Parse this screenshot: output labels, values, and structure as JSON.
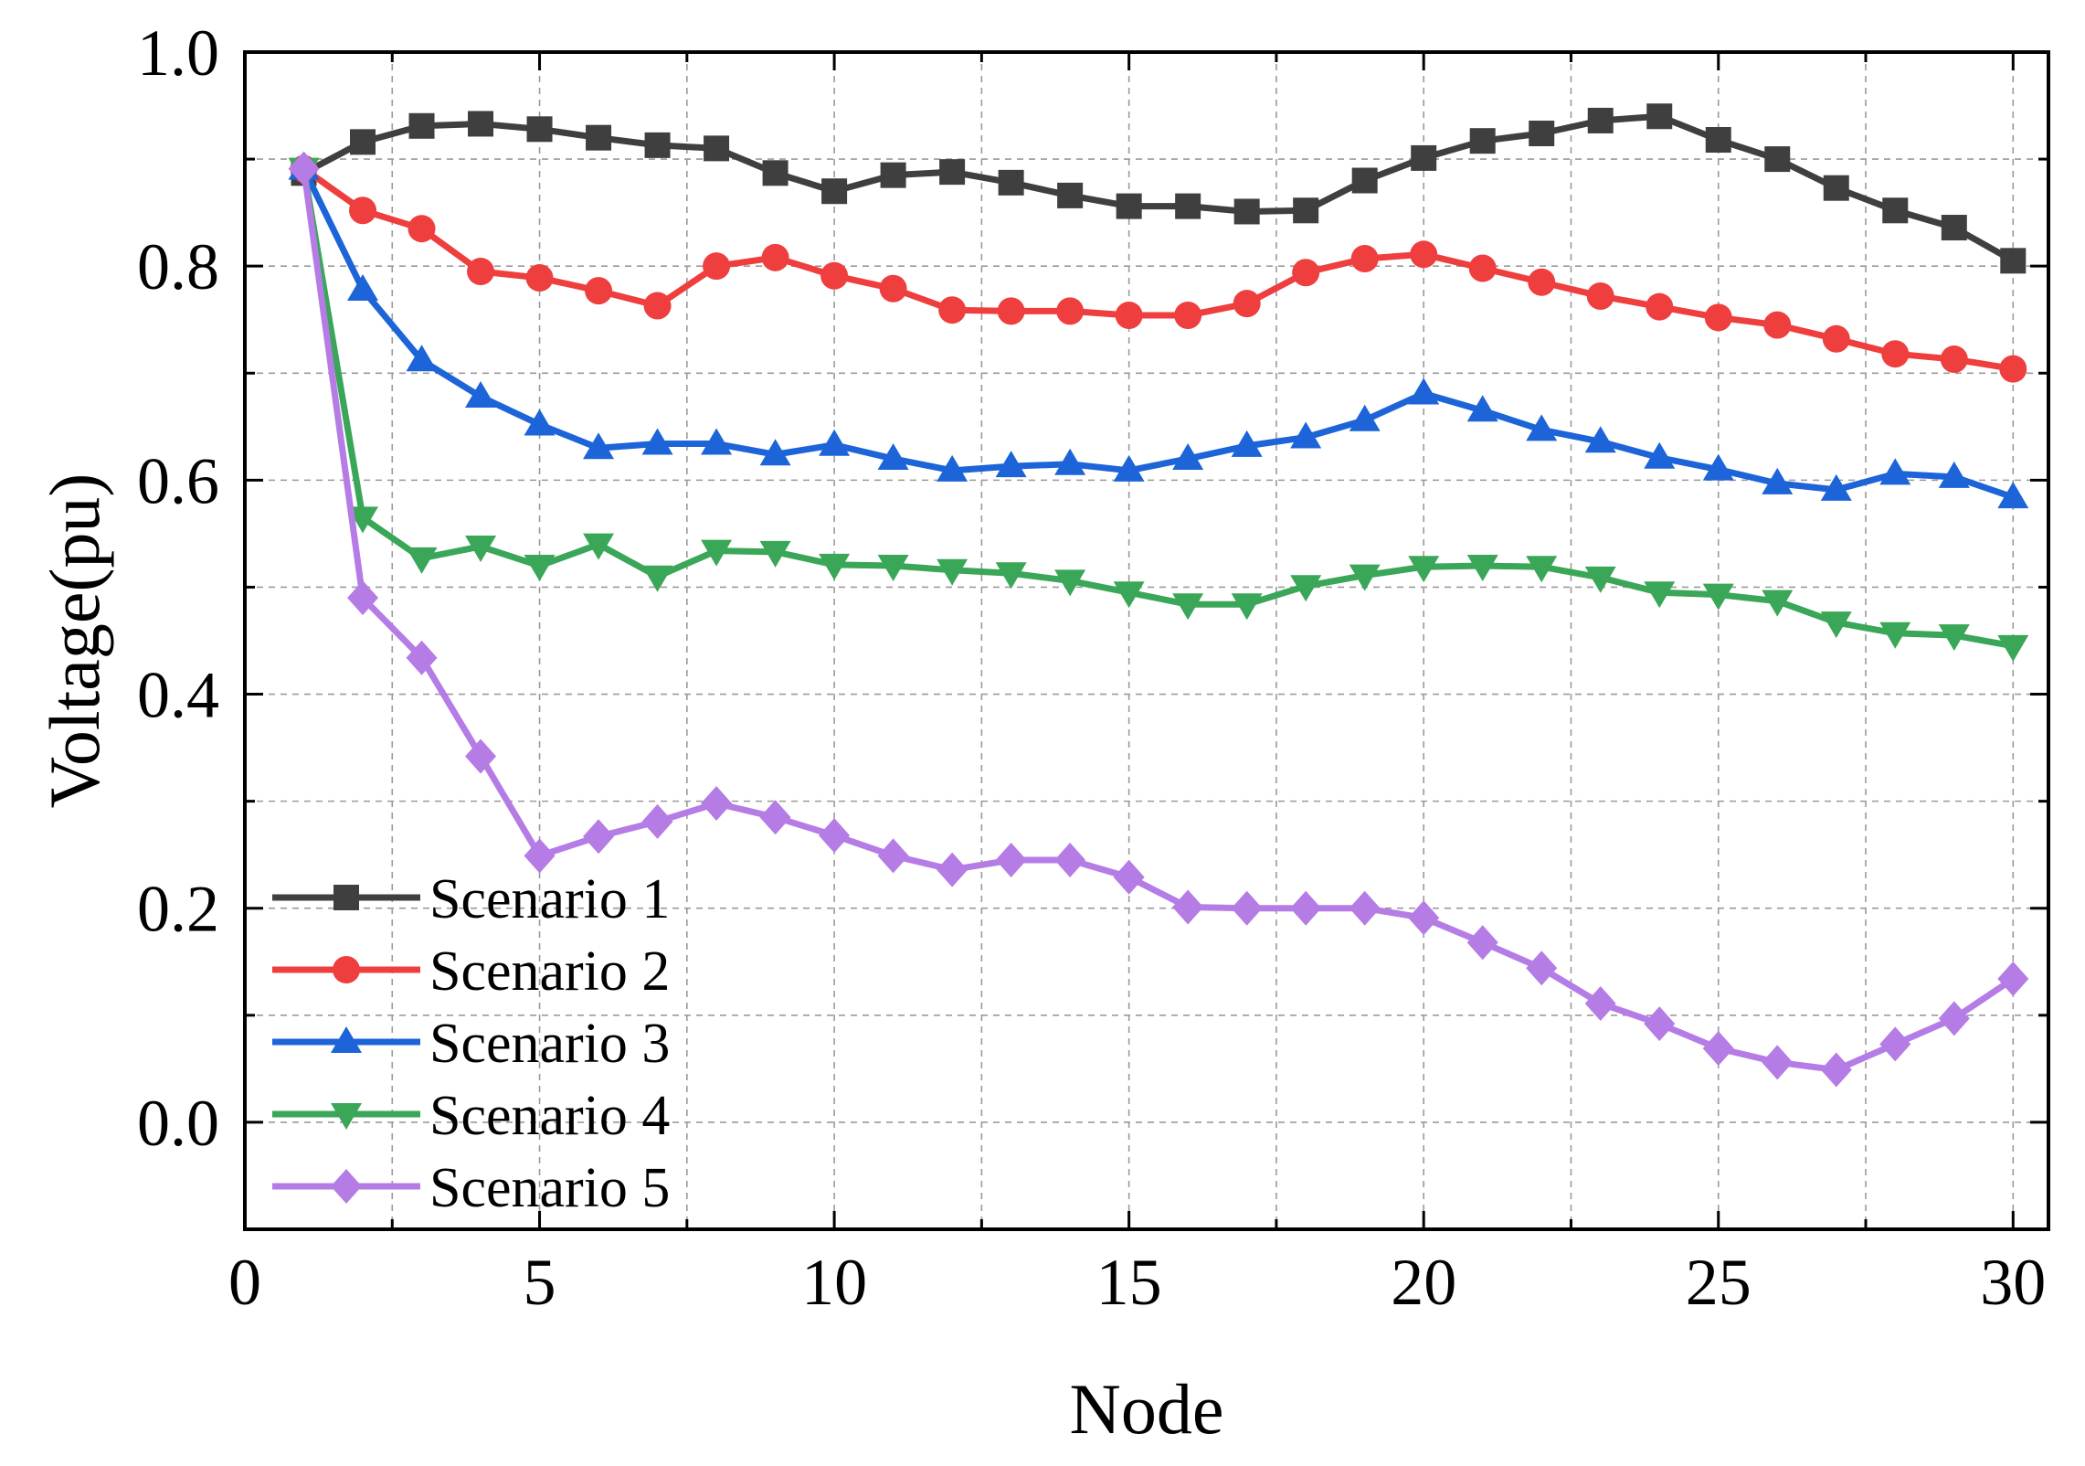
{
  "chart_data": {
    "type": "line",
    "title": "",
    "xlabel": "Node",
    "ylabel": "Voltage(pu)",
    "xlim": [
      0,
      30.6
    ],
    "ylim": [
      -0.1,
      1.0
    ],
    "xticks": [
      0,
      5,
      10,
      15,
      20,
      25,
      30
    ],
    "xtick_labels": [
      "0",
      "5",
      "10",
      "15",
      "20",
      "25",
      "30"
    ],
    "yticks": [
      0.0,
      0.2,
      0.4,
      0.6,
      0.8,
      1.0
    ],
    "ytick_labels": [
      "0.0",
      "0.2",
      "0.4",
      "0.6",
      "0.8",
      "1.0"
    ],
    "grid": true,
    "legend_position": "bottom-left",
    "x": [
      1,
      2,
      3,
      4,
      5,
      6,
      7,
      8,
      9,
      10,
      11,
      12,
      13,
      14,
      15,
      16,
      17,
      18,
      19,
      20,
      21,
      22,
      23,
      24,
      25,
      26,
      27,
      28,
      29,
      30
    ],
    "series": [
      {
        "name": "Scenario 1",
        "color": "#3f3f3f",
        "marker": "square",
        "values": [
          0.887,
          0.916,
          0.931,
          0.933,
          0.928,
          0.92,
          0.913,
          0.91,
          0.887,
          0.87,
          0.885,
          0.888,
          0.878,
          0.866,
          0.856,
          0.856,
          0.851,
          0.852,
          0.88,
          0.901,
          0.917,
          0.924,
          0.936,
          0.94,
          0.918,
          0.9,
          0.873,
          0.852,
          0.836,
          0.805
        ]
      },
      {
        "name": "Scenario 2",
        "color": "#ef3e3e",
        "marker": "circle",
        "values": [
          0.891,
          0.852,
          0.835,
          0.795,
          0.789,
          0.777,
          0.763,
          0.8,
          0.808,
          0.791,
          0.779,
          0.759,
          0.758,
          0.758,
          0.754,
          0.754,
          0.765,
          0.794,
          0.807,
          0.811,
          0.798,
          0.785,
          0.772,
          0.762,
          0.752,
          0.745,
          0.732,
          0.718,
          0.713,
          0.704
        ]
      },
      {
        "name": "Scenario 3",
        "color": "#1c64d8",
        "marker": "triangle-up",
        "values": [
          0.891,
          0.778,
          0.712,
          0.678,
          0.652,
          0.63,
          0.634,
          0.634,
          0.624,
          0.633,
          0.62,
          0.609,
          0.613,
          0.615,
          0.609,
          0.62,
          0.632,
          0.64,
          0.656,
          0.681,
          0.665,
          0.647,
          0.636,
          0.621,
          0.61,
          0.597,
          0.591,
          0.606,
          0.603,
          0.584
        ]
      },
      {
        "name": "Scenario 4",
        "color": "#3aa657",
        "marker": "triangle-down",
        "values": [
          0.891,
          0.565,
          0.527,
          0.538,
          0.52,
          0.54,
          0.51,
          0.534,
          0.533,
          0.521,
          0.52,
          0.516,
          0.513,
          0.506,
          0.495,
          0.484,
          0.484,
          0.501,
          0.511,
          0.519,
          0.52,
          0.519,
          0.509,
          0.495,
          0.493,
          0.487,
          0.467,
          0.457,
          0.455,
          0.445
        ]
      },
      {
        "name": "Scenario 5",
        "color": "#b57ce6",
        "marker": "diamond",
        "values": [
          0.891,
          0.49,
          0.434,
          0.342,
          0.249,
          0.267,
          0.281,
          0.298,
          0.285,
          0.268,
          0.249,
          0.236,
          0.245,
          0.245,
          0.229,
          0.201,
          0.2,
          0.2,
          0.2,
          0.191,
          0.168,
          0.144,
          0.111,
          0.092,
          0.069,
          0.056,
          0.049,
          0.073,
          0.097,
          0.134
        ]
      }
    ]
  }
}
